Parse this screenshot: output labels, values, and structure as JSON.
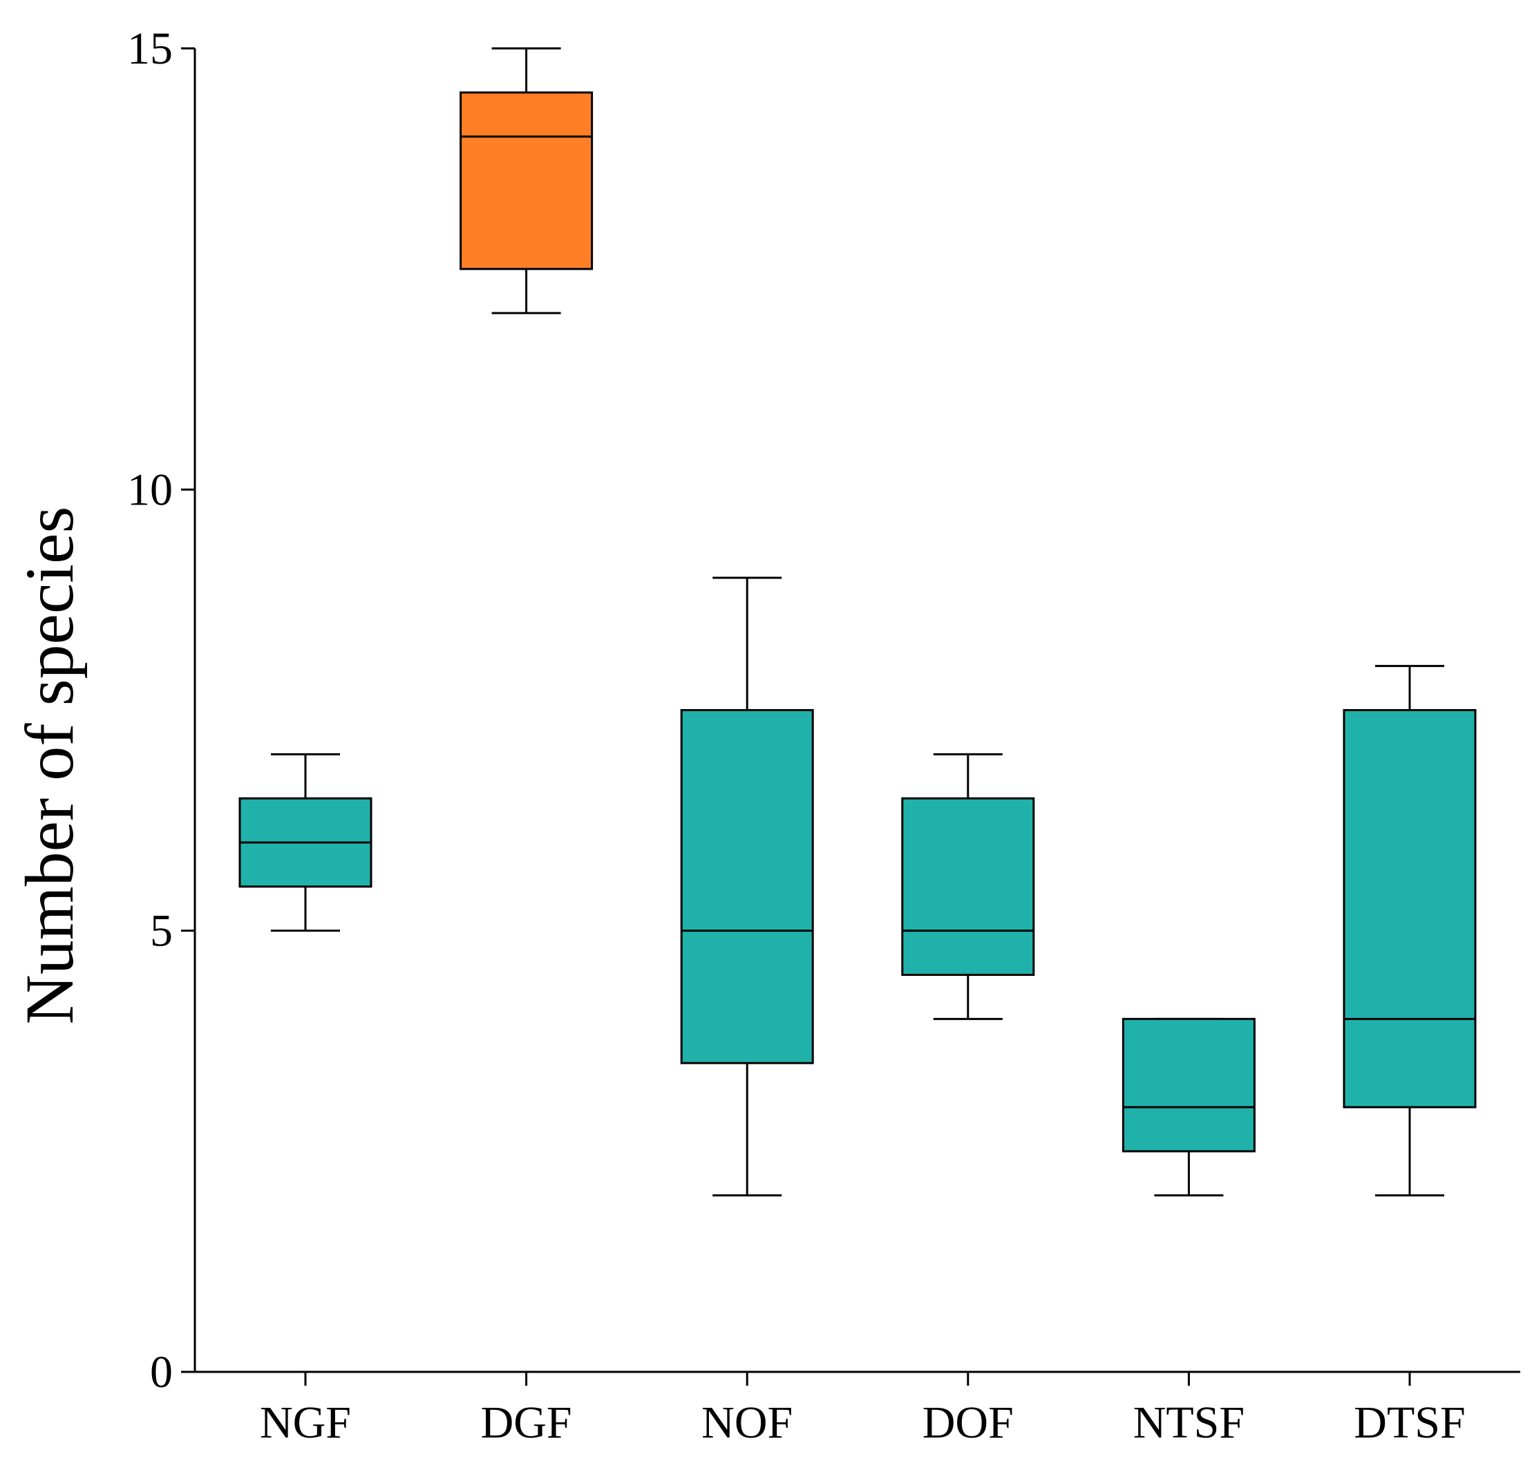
{
  "chart_data": {
    "type": "boxplot",
    "title": "",
    "xlabel": "",
    "ylabel": "Number of species",
    "ylim": [
      0,
      15
    ],
    "yticks": [
      0,
      5,
      10,
      15
    ],
    "grid": false,
    "colors": {
      "default": "#20B2AA",
      "highlight": "#FF7F27",
      "axis": "#000000"
    },
    "boxes": [
      {
        "category": "NGF",
        "min": 5,
        "q1": 5.5,
        "median": 6,
        "q3": 6.5,
        "max": 7,
        "highlight": false
      },
      {
        "category": "DGF",
        "min": 12,
        "q1": 12.5,
        "median": 14,
        "q3": 14.5,
        "max": 15,
        "highlight": true
      },
      {
        "category": "NOF",
        "min": 2,
        "q1": 3.5,
        "median": 5,
        "q3": 7.5,
        "max": 9,
        "highlight": false
      },
      {
        "category": "DOF",
        "min": 4,
        "q1": 4.5,
        "median": 5,
        "q3": 6.5,
        "max": 7,
        "highlight": false
      },
      {
        "category": "NTSF",
        "min": 2,
        "q1": 2.5,
        "median": 3,
        "q3": 4,
        "max": 4,
        "highlight": false
      },
      {
        "category": "DTSF",
        "min": 2,
        "q1": 3,
        "median": 4,
        "q3": 7.5,
        "max": 8,
        "highlight": false
      }
    ]
  }
}
